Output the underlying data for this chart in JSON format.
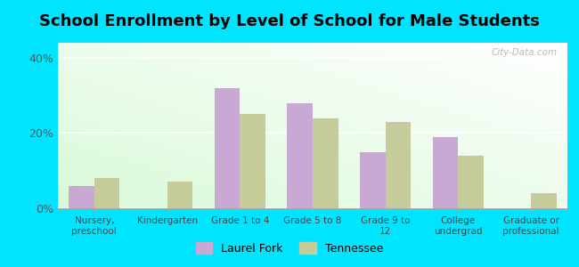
{
  "title": "School Enrollment by Level of School for Male Students",
  "categories": [
    "Nursery,\npreschool",
    "Kindergarten",
    "Grade 1 to 4",
    "Grade 5 to 8",
    "Grade 9 to\n12",
    "College\nundergrad",
    "Graduate or\nprofessional"
  ],
  "laurel_fork": [
    6,
    0,
    32,
    28,
    15,
    19,
    0
  ],
  "tennessee": [
    8,
    7,
    25,
    24,
    23,
    14,
    4
  ],
  "laurel_color": "#c9a8d4",
  "tennessee_color": "#c5cc99",
  "background_color": "#00e5ff",
  "title_fontsize": 13,
  "ylabel_ticks": [
    0,
    20,
    40
  ],
  "ylim": [
    0,
    44
  ],
  "bar_width": 0.35,
  "legend_labels": [
    "Laurel Fork",
    "Tennessee"
  ],
  "watermark": "City-Data.com"
}
